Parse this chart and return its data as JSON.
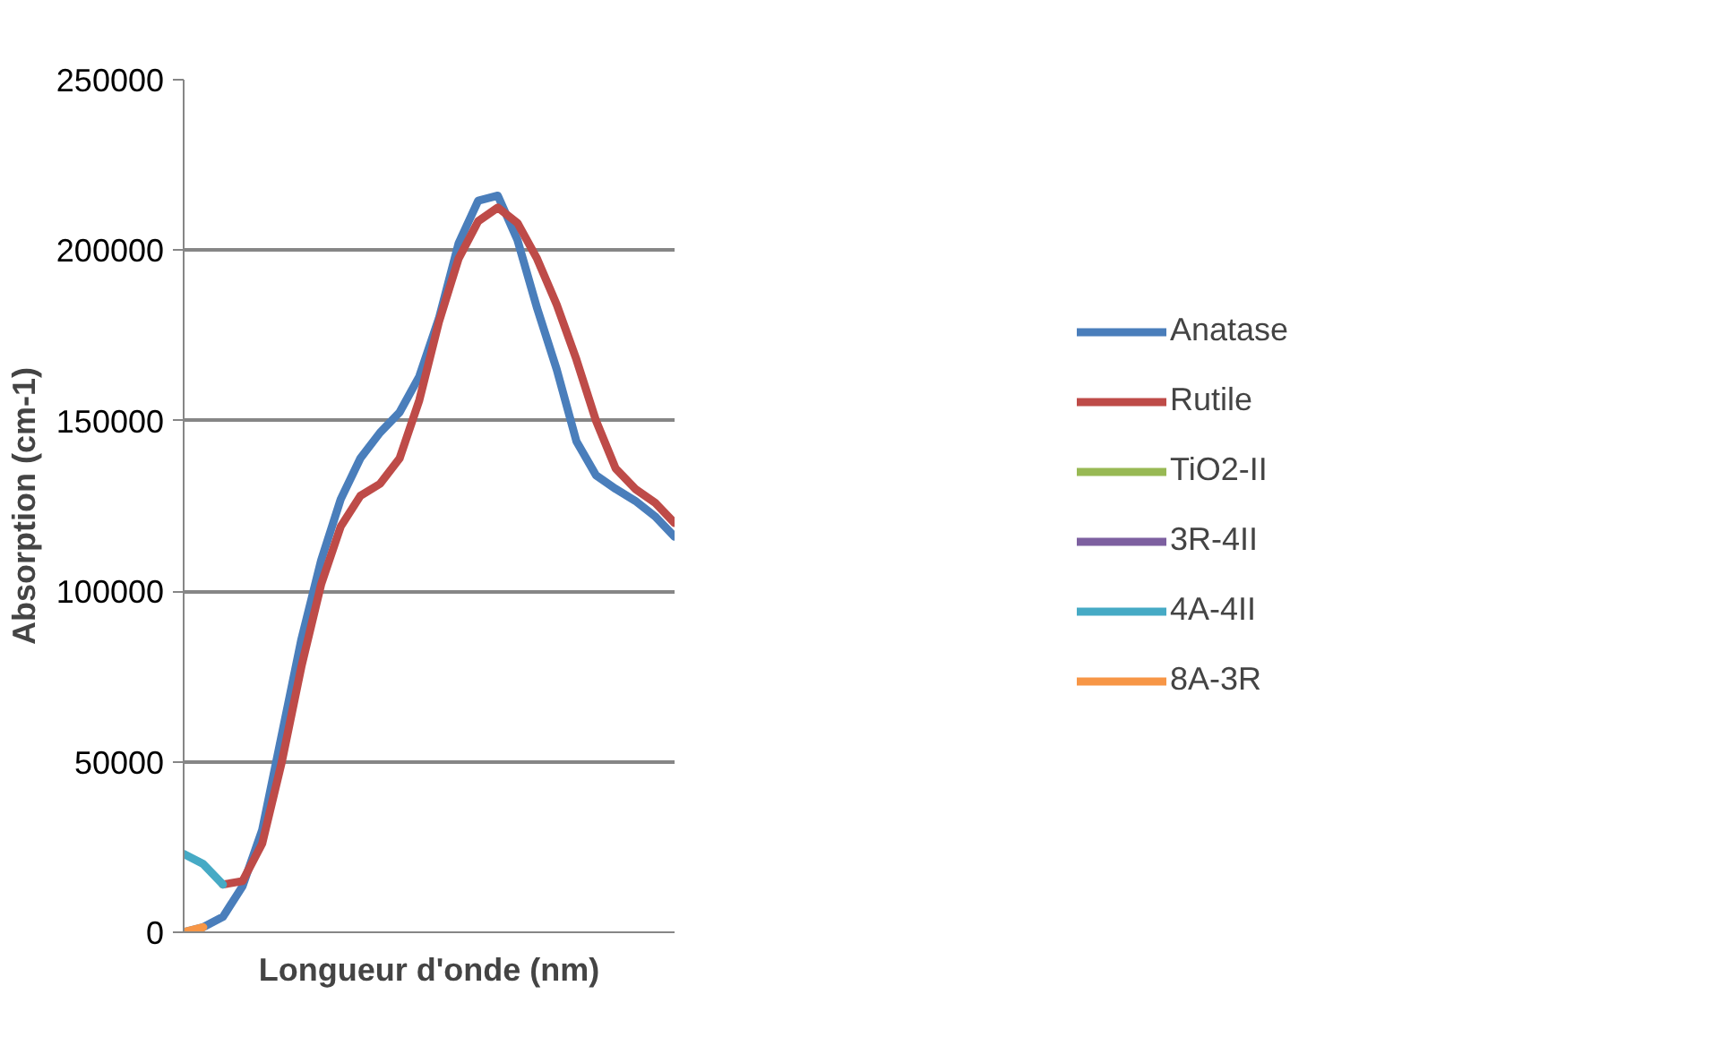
{
  "chart_data": {
    "type": "line",
    "xlabel": "Longueur d'onde (nm)",
    "ylabel": "Absorption (cm-1)",
    "categories": [
      null,
      null,
      null,
      null,
      null,
      null,
      null,
      null,
      null,
      null,
      null,
      null,
      null,
      null,
      null,
      null,
      null,
      null,
      null,
      null,
      null,
      null,
      null,
      null,
      null,
      null
    ],
    "ylim": [
      0,
      250000
    ],
    "yticks": [
      0,
      50000,
      100000,
      150000,
      200000,
      250000
    ],
    "grid": "y",
    "legend": "right",
    "line_style": "solid",
    "marker": "none",
    "series": [
      {
        "name": "Anatase",
        "color": "#4a7ebb",
        "values": [
          0,
          1500,
          4500,
          13500,
          30000,
          58000,
          86000,
          109000,
          127000,
          139000,
          146500,
          152500,
          163000,
          180000,
          202000,
          214500,
          216000,
          203000,
          183000,
          165000,
          144000,
          134000,
          130000,
          126500,
          122000,
          116000
        ]
      },
      {
        "name": "Rutile",
        "color": "#be4b48",
        "values": [
          null,
          null,
          14000,
          15000,
          26000,
          50000,
          78000,
          102000,
          119000,
          128000,
          131500,
          139000,
          156000,
          179000,
          197500,
          208500,
          212500,
          208000,
          197500,
          184000,
          168000,
          150000,
          136000,
          130000,
          126000,
          120000
        ]
      },
      {
        "name": "TiO2-II",
        "color": "#98b954",
        "values": [
          null,
          null,
          null,
          null,
          null,
          null,
          null,
          null,
          null,
          null,
          null,
          null,
          null,
          null,
          null,
          null,
          null,
          null,
          null,
          null,
          null,
          null,
          null,
          null,
          null,
          null
        ]
      },
      {
        "name": "3R-4II",
        "color": "#7d60a0",
        "values": [
          null,
          null,
          null,
          null,
          null,
          null,
          null,
          null,
          null,
          null,
          null,
          null,
          null,
          null,
          null,
          null,
          null,
          null,
          null,
          null,
          null,
          null,
          null,
          null,
          null,
          null
        ]
      },
      {
        "name": "4A-4II",
        "color": "#46aac5",
        "values": [
          23000,
          20000,
          14000,
          null,
          null,
          null,
          null,
          null,
          null,
          null,
          null,
          null,
          null,
          null,
          null,
          null,
          null,
          null,
          null,
          null,
          null,
          null,
          null,
          null,
          null,
          null
        ]
      },
      {
        "name": "8A-3R",
        "color": "#f79646",
        "values": [
          0,
          1500,
          null,
          null,
          null,
          null,
          null,
          null,
          null,
          null,
          null,
          null,
          null,
          null,
          null,
          null,
          null,
          null,
          null,
          null,
          null,
          null,
          null,
          null,
          null,
          null
        ]
      }
    ]
  }
}
